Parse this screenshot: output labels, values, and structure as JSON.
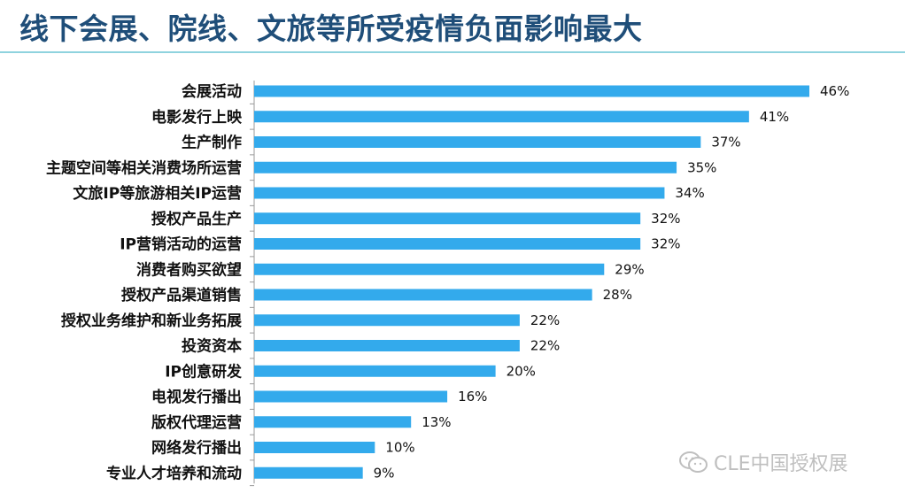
{
  "title": "线下会展、院线、文旅等所受疫情负面影响最大",
  "watermark": "CLE中国授权展",
  "colors": {
    "bar": "#33aaec",
    "title": "#1f4e79",
    "rule": "#8fd3de"
  },
  "chart_data": {
    "type": "bar",
    "orientation": "horizontal",
    "value_unit": "%",
    "categories": [
      "会展活动",
      "电影发行上映",
      "生产制作",
      "主题空间等相关消费场所运营",
      "文旅IP等旅游相关IP运营",
      "授权产品生产",
      "IP营销活动的运营",
      "消费者购买欲望",
      "授权产品渠道销售",
      "授权业务维护和新业务拓展",
      "投资资本",
      "IP创意研发",
      "电视发行播出",
      "版权代理运营",
      "网络发行播出",
      "专业人才培养和流动"
    ],
    "values": [
      46,
      41,
      37,
      35,
      34,
      32,
      32,
      29,
      28,
      22,
      22,
      20,
      16,
      13,
      10,
      9
    ],
    "value_labels": [
      "46%",
      "41%",
      "37%",
      "35%",
      "34%",
      "32%",
      "32%",
      "29%",
      "28%",
      "22%",
      "22%",
      "20%",
      "16%",
      "13%",
      "10%",
      "9%"
    ],
    "xlim": [
      0,
      46
    ],
    "grid": false,
    "legend": "none"
  }
}
